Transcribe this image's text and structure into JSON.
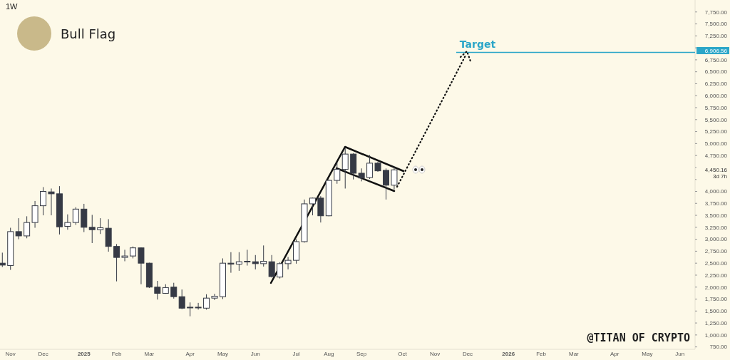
{
  "chart_data": {
    "type": "candlestick",
    "title": "Bull Flag",
    "x": [
      "2024-10-28",
      "2024-11-04",
      "2024-11-11",
      "2024-11-18",
      "2024-11-25",
      "2024-12-02",
      "2024-12-09",
      "2024-12-16",
      "2024-12-23",
      "2024-12-30",
      "2025-01-06",
      "2025-01-13",
      "2025-01-20",
      "2025-01-27",
      "2025-02-03",
      "2025-02-10",
      "2025-02-17",
      "2025-02-24",
      "2025-03-03",
      "2025-03-10",
      "2025-03-17",
      "2025-03-24",
      "2025-03-31",
      "2025-04-07",
      "2025-04-14",
      "2025-04-21",
      "2025-04-28",
      "2025-05-05",
      "2025-05-12",
      "2025-05-19",
      "2025-05-26",
      "2025-06-02",
      "2025-06-09",
      "2025-06-16",
      "2025-06-23",
      "2025-06-30",
      "2025-07-07",
      "2025-07-14",
      "2025-07-21",
      "2025-07-28",
      "2025-08-04",
      "2025-08-11",
      "2025-08-18",
      "2025-08-25",
      "2025-09-01",
      "2025-09-08",
      "2025-09-15",
      "2025-09-22",
      "2025-09-29"
    ],
    "ohlc": [
      [
        2500,
        2720,
        2420,
        2460
      ],
      [
        2450,
        3240,
        2360,
        3160
      ],
      [
        3160,
        3440,
        3000,
        3070
      ],
      [
        3070,
        3480,
        3020,
        3350
      ],
      [
        3350,
        3800,
        3240,
        3700
      ],
      [
        3700,
        4090,
        3500,
        4000
      ],
      [
        3990,
        4060,
        3500,
        3950
      ],
      [
        3950,
        4110,
        3100,
        3260
      ],
      [
        3270,
        3520,
        3200,
        3350
      ],
      [
        3350,
        3670,
        3300,
        3630
      ],
      [
        3630,
        3740,
        3150,
        3250
      ],
      [
        3250,
        3510,
        2920,
        3200
      ],
      [
        3200,
        3440,
        3110,
        3240
      ],
      [
        3230,
        3420,
        2740,
        2850
      ],
      [
        2850,
        2900,
        2120,
        2620
      ],
      [
        2620,
        2780,
        2540,
        2650
      ],
      [
        2650,
        2850,
        2600,
        2820
      ],
      [
        2820,
        2830,
        2060,
        2500
      ],
      [
        2500,
        2510,
        1980,
        2000
      ],
      [
        2000,
        2130,
        1740,
        1870
      ],
      [
        1870,
        2060,
        1860,
        1990
      ],
      [
        2000,
        2090,
        1760,
        1800
      ],
      [
        1800,
        1950,
        1540,
        1560
      ],
      [
        1580,
        1680,
        1390,
        1570
      ],
      [
        1580,
        1670,
        1530,
        1570
      ],
      [
        1560,
        1850,
        1530,
        1770
      ],
      [
        1770,
        1860,
        1730,
        1810
      ],
      [
        1800,
        2600,
        1750,
        2500
      ],
      [
        2500,
        2730,
        2300,
        2480
      ],
      [
        2480,
        2730,
        2340,
        2530
      ],
      [
        2530,
        2780,
        2450,
        2540
      ],
      [
        2530,
        2670,
        2370,
        2490
      ],
      [
        2490,
        2870,
        2430,
        2540
      ],
      [
        2530,
        2670,
        2200,
        2220
      ],
      [
        2210,
        2520,
        2180,
        2490
      ],
      [
        2490,
        2630,
        2370,
        2560
      ],
      [
        2560,
        3000,
        2490,
        2950
      ],
      [
        2950,
        3830,
        2930,
        3740
      ],
      [
        3740,
        3870,
        3500,
        3860
      ],
      [
        3860,
        3900,
        3350,
        3490
      ],
      [
        3490,
        4250,
        3480,
        4230
      ],
      [
        4230,
        4610,
        4160,
        4460
      ],
      [
        4460,
        4900,
        4060,
        4780
      ],
      [
        4780,
        4800,
        4250,
        4380
      ],
      [
        4380,
        4480,
        4210,
        4280
      ],
      [
        4290,
        4760,
        4260,
        4590
      ],
      [
        4590,
        4620,
        4410,
        4430
      ],
      [
        4440,
        4480,
        3830,
        4130
      ],
      [
        4130,
        4510,
        4040,
        4450.16
      ]
    ],
    "colors": [
      "#363a45",
      "#ffffff",
      "#363a45",
      "#ffffff",
      "#ffffff",
      "#ffffff",
      "#363a45",
      "#363a45",
      "#ffffff",
      "#ffffff",
      "#363a45",
      "#363a45",
      "#ffffff",
      "#363a45",
      "#363a45",
      "#ffffff",
      "#ffffff",
      "#363a45",
      "#363a45",
      "#363a45",
      "#ffffff",
      "#363a45",
      "#363a45",
      "#363a45",
      "#363a45",
      "#ffffff",
      "#ffffff",
      "#ffffff",
      "#363a45",
      "#ffffff",
      "#ffffff",
      "#363a45",
      "#ffffff",
      "#363a45",
      "#ffffff",
      "#ffffff",
      "#ffffff",
      "#ffffff",
      "#ffffff",
      "#363a45",
      "#ffffff",
      "#ffffff",
      "#ffffff",
      "#363a45",
      "#363a45",
      "#ffffff",
      "#363a45",
      "#363a45",
      "#ffffff"
    ],
    "xlim": [
      "2024-10-26",
      "2026-06-14"
    ],
    "xticks": [
      {
        "value": "2024-11-04",
        "label": "Nov"
      },
      {
        "value": "2024-12-02",
        "label": "Dec"
      },
      {
        "value": "2025-01-06",
        "label": "2025"
      },
      {
        "value": "2025-02-03",
        "label": "Feb"
      },
      {
        "value": "2025-03-03",
        "label": "Mar"
      },
      {
        "value": "2025-04-07",
        "label": "Apr"
      },
      {
        "value": "2025-05-05",
        "label": "May"
      },
      {
        "value": "2025-06-02",
        "label": "Jun"
      },
      {
        "value": "2025-07-07",
        "label": "Jul"
      },
      {
        "value": "2025-08-04",
        "label": "Aug"
      },
      {
        "value": "2025-09-01",
        "label": "Sep"
      },
      {
        "value": "2025-10-06",
        "label": "Oct"
      },
      {
        "value": "2025-11-03",
        "label": "Nov"
      },
      {
        "value": "2025-12-01",
        "label": "Dec"
      },
      {
        "value": "2026-01-05",
        "label": "2026"
      },
      {
        "value": "2026-02-02",
        "label": "Feb"
      },
      {
        "value": "2026-03-02",
        "label": "Mar"
      },
      {
        "value": "2026-04-06",
        "label": "Apr"
      },
      {
        "value": "2026-05-04",
        "label": "May"
      },
      {
        "value": "2026-06-01",
        "label": "Jun"
      }
    ],
    "ylim": [
      700,
      8000
    ],
    "yticks": [
      {
        "value": 750,
        "label": "750.00"
      },
      {
        "value": 1000,
        "label": "1,000.00"
      },
      {
        "value": 1250,
        "label": "1,250.00"
      },
      {
        "value": 1500,
        "label": "1,500.00"
      },
      {
        "value": 1750,
        "label": "1,750.00"
      },
      {
        "value": 2000,
        "label": "2,000.00"
      },
      {
        "value": 2250,
        "label": "2,250.00"
      },
      {
        "value": 2500,
        "label": "2,500.00"
      },
      {
        "value": 2750,
        "label": "2,750.00"
      },
      {
        "value": 3000,
        "label": "3,000.00"
      },
      {
        "value": 3250,
        "label": "3,250.00"
      },
      {
        "value": 3500,
        "label": "3,500.00"
      },
      {
        "value": 3750,
        "label": "3,750.00"
      },
      {
        "value": 4000,
        "label": "4,000.00"
      },
      {
        "value": 4250,
        "label": null
      },
      {
        "value": 4500,
        "label": null
      },
      {
        "value": 4750,
        "label": "4,750.00"
      },
      {
        "value": 5000,
        "label": "5,000.00"
      },
      {
        "value": 5250,
        "label": "5,250.00"
      },
      {
        "value": 5500,
        "label": "5,500.00"
      },
      {
        "value": 5750,
        "label": "5,750.00"
      },
      {
        "value": 6000,
        "label": "6,000.00"
      },
      {
        "value": 6250,
        "label": "6,250.00"
      },
      {
        "value": 6500,
        "label": "6,500.00"
      },
      {
        "value": 6750,
        "label": "6,750.00"
      },
      {
        "value": 7000,
        "label": null
      },
      {
        "value": 7250,
        "label": "7,250.00"
      },
      {
        "value": 7500,
        "label": "7,500.00"
      },
      {
        "value": 7750,
        "label": "7,750.00"
      }
    ],
    "ref_lines": [
      {
        "axis": "y",
        "value": 6906.56,
        "label": "Target",
        "color": "#2ba6c8"
      }
    ],
    "annotations": [
      "1W",
      "@TITAN OF CRYPTO",
      "6,906.56",
      "4,450.16",
      "3d 7h"
    ]
  }
}
